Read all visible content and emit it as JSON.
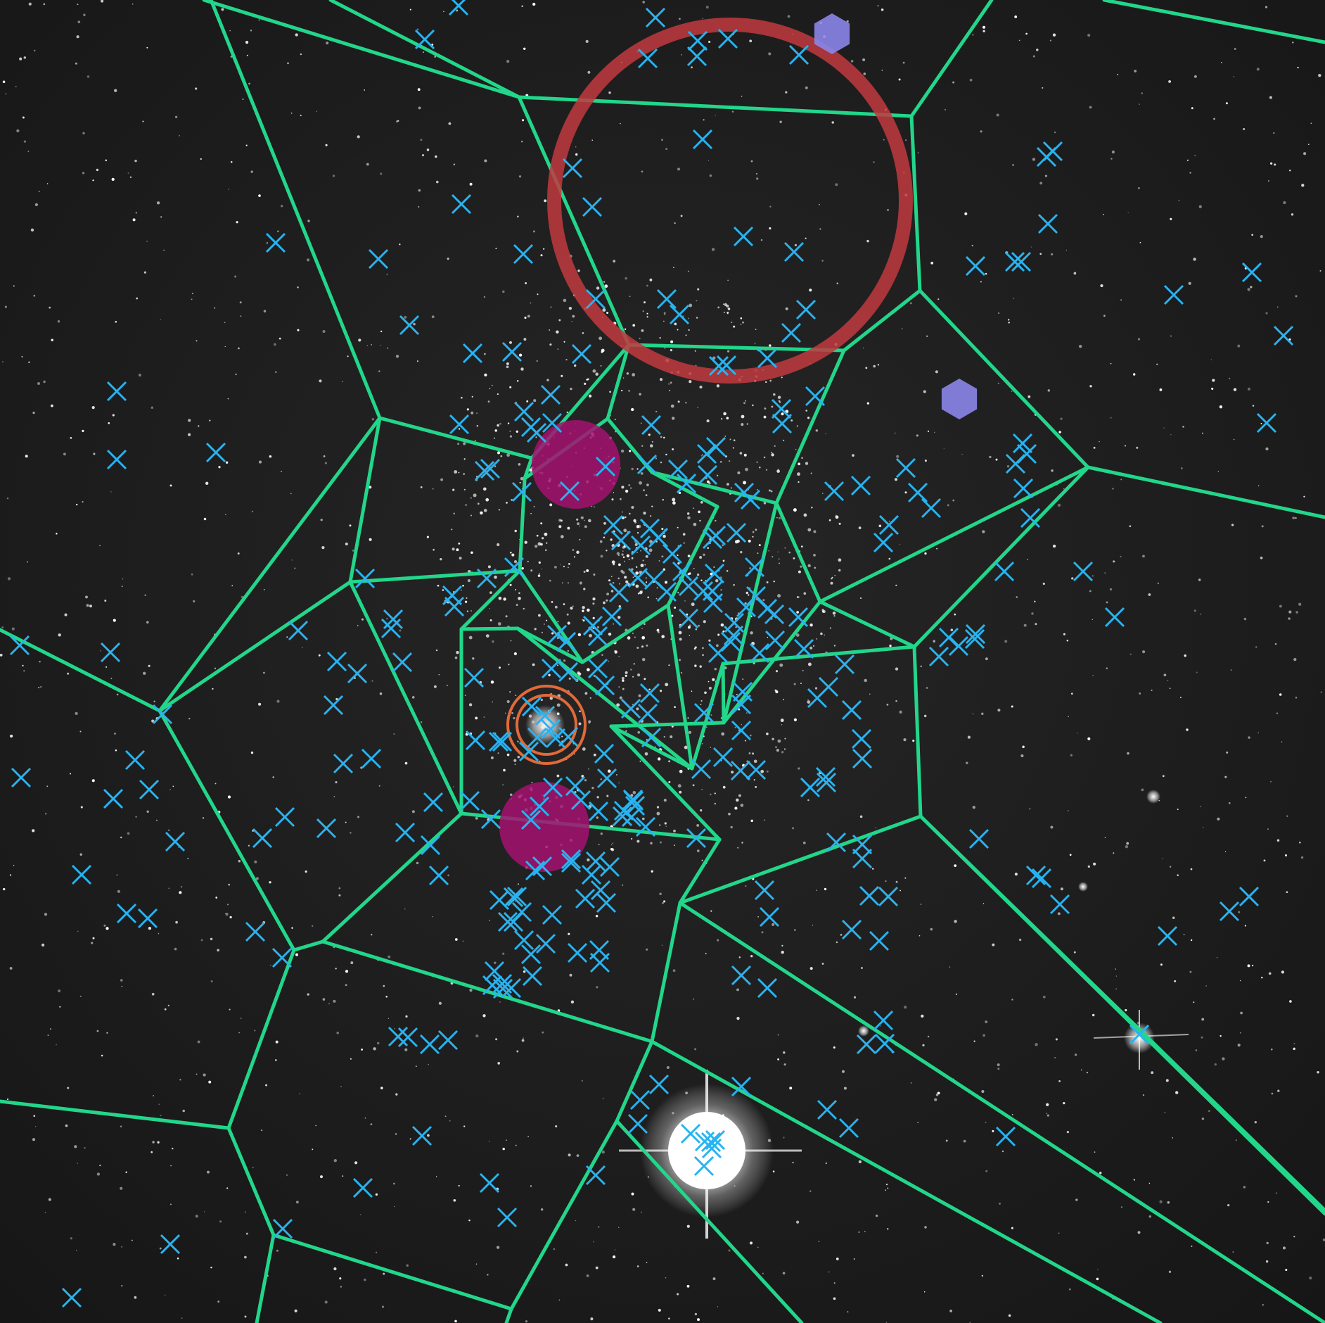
{
  "colors": {
    "background": "#1f1f1f",
    "voronoi": "#22d68a",
    "marker": "#29b3f0",
    "big_circle": "#c0393e",
    "magenta_blob": "#a3126f",
    "orange_rings": "#e06a3a",
    "hexagon": "#8b86ea",
    "star": "#ffffff"
  },
  "icons": {
    "marker": "x-cross-icon",
    "hexagon": "hexagon-icon"
  }
}
